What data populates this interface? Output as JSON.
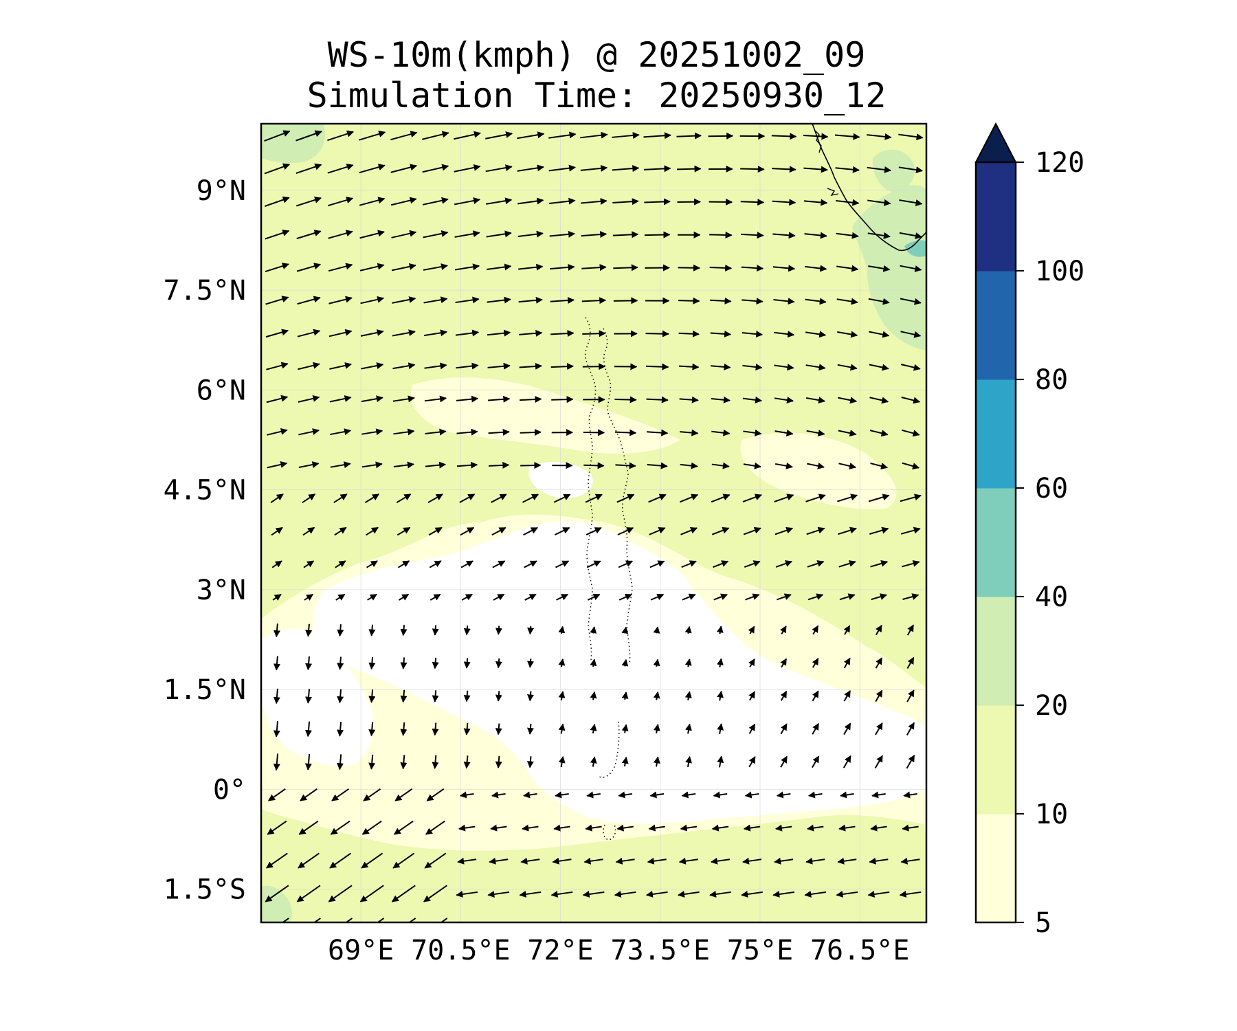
{
  "title": {
    "line1": "WS-10m(kmph) @ 20251002_09",
    "line2": "Simulation Time: 20250930_12"
  },
  "map": {
    "lon_range": [
      67.5,
      77.5
    ],
    "lat_range": [
      -2.0,
      10.0
    ],
    "lon_ticks": [
      {
        "value": 69.0,
        "label": "69°E"
      },
      {
        "value": 70.5,
        "label": "70.5°E"
      },
      {
        "value": 72.0,
        "label": "72°E"
      },
      {
        "value": 73.5,
        "label": "73.5°E"
      },
      {
        "value": 75.0,
        "label": "75°E"
      },
      {
        "value": 76.5,
        "label": "76.5°E"
      }
    ],
    "lat_ticks": [
      {
        "value": 9.0,
        "label": "9°N"
      },
      {
        "value": 7.5,
        "label": "7.5°N"
      },
      {
        "value": 6.0,
        "label": "6°N"
      },
      {
        "value": 4.5,
        "label": "4.5°N"
      },
      {
        "value": 3.0,
        "label": "3°N"
      },
      {
        "value": 1.5,
        "label": "1.5°N"
      },
      {
        "value": 0.0,
        "label": "0°"
      },
      {
        "value": -1.5,
        "label": "1.5°S"
      }
    ],
    "gridlines": true,
    "vector_field": "10 m wind arrows",
    "features": [
      "India/Sri Lanka coastline (top-right)",
      "Maldives atolls (dotted)"
    ]
  },
  "colorbar": {
    "levels": [
      5,
      10,
      20,
      40,
      60,
      80,
      100,
      120
    ],
    "labels": [
      "5",
      "10",
      "20",
      "40",
      "60",
      "80",
      "100",
      "120"
    ],
    "colors": [
      "#ffffd9",
      "#edf8b1",
      "#d0edb3",
      "#7fcdbb",
      "#2fa4c9",
      "#2166ac",
      "#1f2f82"
    ],
    "extend_color": "#0b1f4f",
    "extend": "max"
  }
}
